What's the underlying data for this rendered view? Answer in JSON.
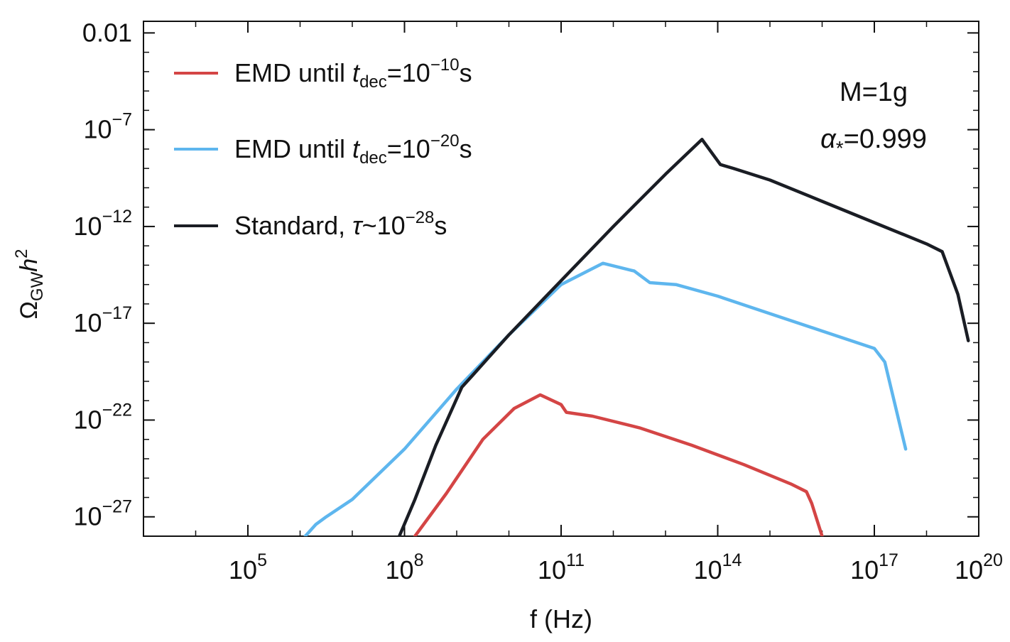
{
  "chart_data": {
    "type": "line",
    "title": "",
    "xlabel": "f (Hz)",
    "ylabel": {
      "base": "Ω",
      "sub": "GW",
      "var": "h",
      "sup": "2"
    },
    "xscale": "log",
    "yscale": "log",
    "xlim_log10": [
      3.0,
      19.0
    ],
    "ylim_log10": [
      -28.0,
      -1.4
    ],
    "x_ticks": [
      {
        "exp": 5,
        "base": "10",
        "sup": "5"
      },
      {
        "exp": 8,
        "base": "10",
        "sup": "8"
      },
      {
        "exp": 11,
        "base": "10",
        "sup": "11"
      },
      {
        "exp": 14,
        "base": "10",
        "sup": "14"
      },
      {
        "exp": 17,
        "base": "10",
        "sup": "17"
      },
      {
        "exp": 20,
        "base": "10",
        "sup": "20"
      }
    ],
    "y_ticks": [
      {
        "exp": -2,
        "text": "0.01",
        "base": "",
        "sup": ""
      },
      {
        "exp": -7,
        "text": "",
        "base": "10",
        "sup": "−7"
      },
      {
        "exp": -12,
        "text": "",
        "base": "10",
        "sup": "−12"
      },
      {
        "exp": -17,
        "text": "",
        "base": "10",
        "sup": "−17"
      },
      {
        "exp": -22,
        "text": "",
        "base": "10",
        "sup": "−22"
      },
      {
        "exp": -27,
        "text": "",
        "base": "10",
        "sup": "−27"
      }
    ],
    "legend_position": "top-left",
    "series": [
      {
        "name": "EMD until t_dec=10^-10 s",
        "legend": {
          "pre": "EMD until ",
          "var": "t",
          "sub": "dec",
          "eq": "=10",
          "sup": "−10",
          "post": "s"
        },
        "color": "#d44545",
        "log_points": [
          [
            8.2,
            -28.0
          ],
          [
            8.8,
            -25.8
          ],
          [
            9.5,
            -23.0
          ],
          [
            10.1,
            -21.4
          ],
          [
            10.6,
            -20.7
          ],
          [
            11.0,
            -21.2
          ],
          [
            11.1,
            -21.6
          ],
          [
            11.6,
            -21.8
          ],
          [
            12.5,
            -22.4
          ],
          [
            13.5,
            -23.3
          ],
          [
            14.5,
            -24.3
          ],
          [
            15.4,
            -25.3
          ],
          [
            15.7,
            -25.7
          ],
          [
            15.8,
            -26.3
          ],
          [
            16.0,
            -28.0
          ]
        ]
      },
      {
        "name": "EMD until t_dec=10^-20 s",
        "legend": {
          "pre": "EMD until ",
          "var": "t",
          "sub": "dec",
          "eq": "=10",
          "sup": "−20",
          "post": "s"
        },
        "color": "#5eb6ee",
        "log_points": [
          [
            6.1,
            -28.0
          ],
          [
            6.3,
            -27.4
          ],
          [
            6.5,
            -27.0
          ],
          [
            7.0,
            -26.1
          ],
          [
            8.0,
            -23.5
          ],
          [
            9.0,
            -20.4
          ],
          [
            10.0,
            -17.6
          ],
          [
            11.0,
            -15.0
          ],
          [
            11.8,
            -13.9
          ],
          [
            12.4,
            -14.3
          ],
          [
            12.7,
            -14.9
          ],
          [
            13.2,
            -15.0
          ],
          [
            14.0,
            -15.6
          ],
          [
            15.0,
            -16.5
          ],
          [
            16.0,
            -17.4
          ],
          [
            17.0,
            -18.3
          ],
          [
            17.2,
            -19.0
          ],
          [
            17.6,
            -23.5
          ]
        ]
      },
      {
        "name": "Standard, τ~10^-28 s",
        "legend": {
          "pre": "Standard, ",
          "var": "τ",
          "sub": "",
          "eq": "~10",
          "sup": "−28",
          "post": "s"
        },
        "color": "#1a1d24",
        "log_points": [
          [
            7.9,
            -28.0
          ],
          [
            8.2,
            -26.1
          ],
          [
            8.6,
            -23.3
          ],
          [
            9.1,
            -20.3
          ],
          [
            9.3,
            -19.7
          ],
          [
            10.0,
            -17.6
          ],
          [
            11.0,
            -14.8
          ],
          [
            12.0,
            -12.0
          ],
          [
            13.0,
            -9.3
          ],
          [
            13.7,
            -7.5
          ],
          [
            14.05,
            -8.8
          ],
          [
            14.3,
            -9.0
          ],
          [
            15.0,
            -9.6
          ],
          [
            16.0,
            -10.7
          ],
          [
            17.0,
            -11.8
          ],
          [
            18.0,
            -12.9
          ],
          [
            18.3,
            -13.3
          ],
          [
            18.6,
            -15.5
          ],
          [
            18.8,
            -17.9
          ]
        ]
      }
    ],
    "annotations": [
      {
        "text": "M=1g"
      },
      {
        "text": "α",
        "sub": "*",
        "post": "=0.999"
      }
    ]
  }
}
